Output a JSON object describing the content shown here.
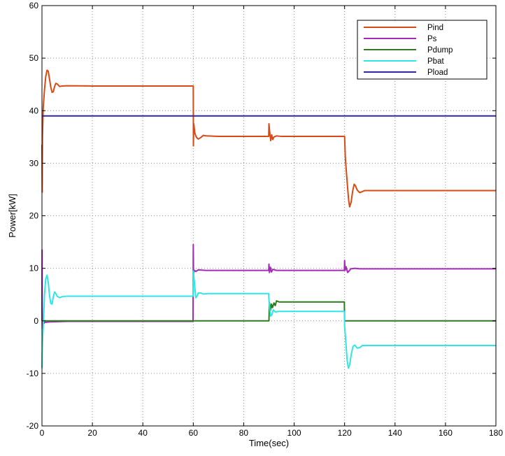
{
  "chart_data": {
    "type": "line",
    "title": "",
    "xlabel": "Time(sec)",
    "ylabel": "Power[kW]",
    "xlim": [
      0,
      180
    ],
    "ylim": [
      -20,
      60
    ],
    "xticks": [
      0,
      20,
      40,
      60,
      80,
      100,
      120,
      140,
      160,
      180
    ],
    "yticks": [
      -20,
      -10,
      0,
      10,
      20,
      30,
      40,
      50,
      60
    ],
    "grid": "dotted",
    "legend_position": "top-right",
    "series": [
      {
        "name": "Pind",
        "color": "#d84a14",
        "points": [
          [
            0,
            33.5
          ],
          [
            0.1,
            24.5
          ],
          [
            0.2,
            35
          ],
          [
            0.5,
            40.5
          ],
          [
            1,
            44
          ],
          [
            1.5,
            46.5
          ],
          [
            2,
            47.7
          ],
          [
            2.5,
            47.5
          ],
          [
            3,
            46
          ],
          [
            3.5,
            44.5
          ],
          [
            4,
            43.5
          ],
          [
            4.5,
            43.6
          ],
          [
            5,
            44.6
          ],
          [
            5.5,
            45.2
          ],
          [
            6,
            45.1
          ],
          [
            7,
            44.6
          ],
          [
            8,
            44.7
          ],
          [
            10,
            44.75
          ],
          [
            20,
            44.7
          ],
          [
            40,
            44.7
          ],
          [
            59.9,
            44.7
          ],
          [
            60,
            44.7
          ],
          [
            60.05,
            33.3
          ],
          [
            60.2,
            37.5
          ],
          [
            60.6,
            35.8
          ],
          [
            61,
            35.2
          ],
          [
            61.5,
            34.8
          ],
          [
            62,
            34.6
          ],
          [
            63,
            34.9
          ],
          [
            64,
            35.3
          ],
          [
            65,
            35.2
          ],
          [
            70,
            35.1
          ],
          [
            85,
            35.1
          ],
          [
            89.9,
            35.1
          ],
          [
            90,
            37.5
          ],
          [
            90.3,
            36
          ],
          [
            90.7,
            34.3
          ],
          [
            91.1,
            35.4
          ],
          [
            91.5,
            34.5
          ],
          [
            92,
            35
          ],
          [
            93,
            35.2
          ],
          [
            95,
            35.1
          ],
          [
            100,
            35.1
          ],
          [
            119.9,
            35.1
          ],
          [
            120,
            35.1
          ],
          [
            120.3,
            31
          ],
          [
            121,
            26.5
          ],
          [
            121.6,
            23
          ],
          [
            122,
            21.7
          ],
          [
            122.6,
            22.6
          ],
          [
            123.2,
            24.7
          ],
          [
            123.8,
            26
          ],
          [
            124.3,
            25.7
          ],
          [
            125,
            24.9
          ],
          [
            126,
            24.4
          ],
          [
            127,
            24.6
          ],
          [
            128,
            24.8
          ],
          [
            130,
            24.8
          ],
          [
            150,
            24.8
          ],
          [
            180,
            24.8
          ]
        ]
      },
      {
        "name": "Ps",
        "color": "#a42ab8",
        "points": [
          [
            0,
            0
          ],
          [
            0.05,
            13.5
          ],
          [
            0.1,
            -1.5
          ],
          [
            0.3,
            -0.8
          ],
          [
            1,
            -0.3
          ],
          [
            3,
            -0.2
          ],
          [
            10,
            -0.1
          ],
          [
            59.9,
            -0.1
          ],
          [
            60,
            14.5
          ],
          [
            60.1,
            9
          ],
          [
            60.4,
            9.6
          ],
          [
            61,
            9.4
          ],
          [
            62,
            9.7
          ],
          [
            65,
            9.6
          ],
          [
            89.9,
            9.6
          ],
          [
            90,
            10.8
          ],
          [
            90.2,
            9.2
          ],
          [
            90.6,
            10.2
          ],
          [
            91,
            9.3
          ],
          [
            91.5,
            9.8
          ],
          [
            93,
            9.6
          ],
          [
            119.9,
            9.6
          ],
          [
            120,
            11.5
          ],
          [
            120.2,
            9.6
          ],
          [
            120.6,
            10.3
          ],
          [
            121.2,
            9.2
          ],
          [
            121.8,
            9.5
          ],
          [
            122.5,
            9.9
          ],
          [
            124,
            10
          ],
          [
            126,
            9.9
          ],
          [
            180,
            9.9
          ]
        ]
      },
      {
        "name": "Pdump",
        "color": "#2e7a20",
        "points": [
          [
            0,
            0
          ],
          [
            59.9,
            0
          ],
          [
            60,
            0
          ],
          [
            89.9,
            0
          ],
          [
            90,
            0
          ],
          [
            90.2,
            3.5
          ],
          [
            90.6,
            2
          ],
          [
            91,
            3.2
          ],
          [
            91.4,
            2.5
          ],
          [
            92,
            3.4
          ],
          [
            92.5,
            2.9
          ],
          [
            93,
            3.8
          ],
          [
            94,
            3.6
          ],
          [
            100,
            3.6
          ],
          [
            119.9,
            3.6
          ],
          [
            120,
            0
          ],
          [
            180,
            0
          ]
        ]
      },
      {
        "name": "Pbat",
        "color": "#2fe6e6",
        "points": [
          [
            0,
            -9
          ],
          [
            0.1,
            -6
          ],
          [
            0.3,
            -3
          ],
          [
            0.7,
            1
          ],
          [
            1,
            5
          ],
          [
            1.5,
            8
          ],
          [
            2,
            8.7
          ],
          [
            2.5,
            7.3
          ],
          [
            3,
            4.8
          ],
          [
            3.5,
            3.3
          ],
          [
            4,
            3.2
          ],
          [
            4.5,
            4.6
          ],
          [
            5,
            5.5
          ],
          [
            5.5,
            5.2
          ],
          [
            6,
            4.7
          ],
          [
            7,
            4.4
          ],
          [
            8,
            4.6
          ],
          [
            10,
            4.7
          ],
          [
            59.9,
            4.7
          ],
          [
            60,
            9.5
          ],
          [
            60.3,
            8
          ],
          [
            60.7,
            6
          ],
          [
            61,
            4.4
          ],
          [
            61.5,
            4.7
          ],
          [
            62,
            5.3
          ],
          [
            63,
            5.3
          ],
          [
            64,
            5.1
          ],
          [
            66,
            5.2
          ],
          [
            89.9,
            5.2
          ],
          [
            90,
            4
          ],
          [
            90.3,
            2.5
          ],
          [
            90.7,
            0.9
          ],
          [
            91.2,
            1.2
          ],
          [
            91.7,
            2.1
          ],
          [
            92.5,
            1.7
          ],
          [
            94,
            1.8
          ],
          [
            100,
            1.8
          ],
          [
            119.9,
            1.8
          ],
          [
            120,
            -1
          ],
          [
            120.5,
            -4
          ],
          [
            121,
            -7.5
          ],
          [
            121.5,
            -9
          ],
          [
            122,
            -8.4
          ],
          [
            122.6,
            -6.5
          ],
          [
            123.3,
            -4.9
          ],
          [
            124,
            -4.6
          ],
          [
            125,
            -5.2
          ],
          [
            126,
            -5.1
          ],
          [
            127,
            -4.7
          ],
          [
            130,
            -4.7
          ],
          [
            180,
            -4.7
          ]
        ]
      },
      {
        "name": "Pload",
        "color": "#3026a8",
        "points": [
          [
            0,
            39
          ],
          [
            180,
            39
          ]
        ]
      }
    ]
  }
}
